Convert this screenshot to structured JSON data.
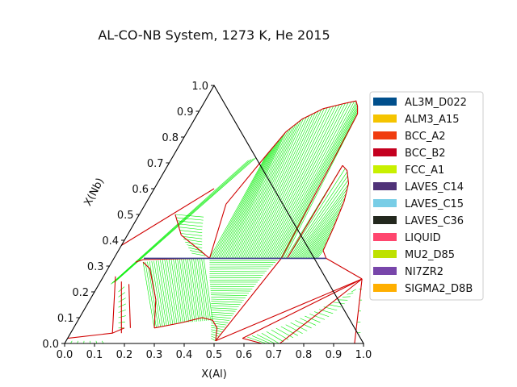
{
  "chart_data": {
    "type": "ternary-phase-diagram",
    "title": "AL-CO-NB System, 1273 K, He 2015",
    "xlabel": "X(Al)",
    "ylabel": "X(Nb)",
    "xlim": [
      0.0,
      1.0
    ],
    "ylim": [
      0.0,
      1.0
    ],
    "x_ticks": [
      "0.0",
      "0.1",
      "0.2",
      "0.3",
      "0.4",
      "0.5",
      "0.6",
      "0.7",
      "0.8",
      "0.9",
      "1.0"
    ],
    "y_ticks": [
      "0.0",
      "0.1",
      "0.2",
      "0.3",
      "0.4",
      "0.5",
      "0.6",
      "0.7",
      "0.8",
      "0.9",
      "1.0"
    ],
    "legend_position": "right",
    "legend": [
      {
        "name": "AL3M_D022",
        "color": "#004f8c"
      },
      {
        "name": "ALM3_A15",
        "color": "#f5c400"
      },
      {
        "name": "BCC_A2",
        "color": "#f03c0f"
      },
      {
        "name": "BCC_B2",
        "color": "#c4001f"
      },
      {
        "name": "FCC_A1",
        "color": "#c8f000"
      },
      {
        "name": "LAVES_C14",
        "color": "#4f3278"
      },
      {
        "name": "LAVES_C15",
        "color": "#78cde6"
      },
      {
        "name": "LAVES_C36",
        "color": "#23281e"
      },
      {
        "name": "LIQUID",
        "color": "#ff466e"
      },
      {
        "name": "MU2_D85",
        "color": "#bee100"
      },
      {
        "name": "NI7ZR2",
        "color": "#7846aa"
      },
      {
        "name": "SIGMA2_D8B",
        "color": "#ffaf00"
      }
    ],
    "colors": {
      "boundary": "#d00000",
      "tieline": "#00ee00",
      "frame": "#000000",
      "laves_line": "#3c3c8c"
    },
    "tie_regions": [
      {
        "a": [
          [
            0.31,
            0.73
          ],
          [
            0.33,
            0.82
          ],
          [
            0.36,
            0.87
          ],
          [
            0.41,
            0.91
          ],
          [
            0.47,
            0.93
          ],
          [
            0.505,
            0.94
          ],
          [
            0.52,
            0.92
          ],
          [
            0.535,
            0.89
          ]
        ],
        "b": [
          [
            0.32,
            0.33
          ],
          [
            0.37,
            0.33
          ],
          [
            0.42,
            0.33
          ],
          [
            0.47,
            0.33
          ],
          [
            0.52,
            0.33
          ],
          [
            0.55,
            0.33
          ],
          [
            0.56,
            0.33
          ],
          [
            0.57,
            0.33
          ]
        ],
        "n": 42
      },
      {
        "a": [
          [
            0.585,
            0.69
          ],
          [
            0.61,
            0.67
          ],
          [
            0.64,
            0.62
          ],
          [
            0.66,
            0.55
          ],
          [
            0.675,
            0.45
          ],
          [
            0.685,
            0.36
          ]
        ],
        "b": [
          [
            0.575,
            0.33
          ],
          [
            0.6,
            0.33
          ],
          [
            0.63,
            0.33
          ],
          [
            0.65,
            0.33
          ],
          [
            0.665,
            0.33
          ],
          [
            0.68,
            0.33
          ]
        ],
        "n": 20
      },
      {
        "a": [
          [
            0.105,
            0.315
          ],
          [
            0.2,
            0.33
          ],
          [
            0.3,
            0.33
          ]
        ],
        "b": [
          [
            0.27,
            0.06
          ],
          [
            0.35,
            0.08
          ],
          [
            0.45,
            0.09
          ]
        ],
        "n": 30
      },
      {
        "a": [
          [
            0.32,
            0.33
          ],
          [
            0.36,
            0.25
          ],
          [
            0.4,
            0.18
          ],
          [
            0.43,
            0.12
          ],
          [
            0.46,
            0.06
          ],
          [
            0.48,
            0.02
          ]
        ],
        "b": [
          [
            0.555,
            0.33
          ],
          [
            0.535,
            0.28
          ],
          [
            0.52,
            0.2
          ],
          [
            0.51,
            0.13
          ],
          [
            0.505,
            0.06
          ],
          [
            0.5,
            0.01
          ]
        ],
        "n": 38
      },
      {
        "a": [
          [
            0.585,
            0.02
          ],
          [
            0.64,
            0.04
          ],
          [
            0.7,
            0.07
          ],
          [
            0.77,
            0.12
          ],
          [
            0.83,
            0.17
          ],
          [
            0.86,
            0.2
          ]
        ],
        "b": [
          [
            0.66,
            0.0
          ],
          [
            0.72,
            0.0
          ],
          [
            0.78,
            0.04
          ],
          [
            0.83,
            0.1
          ],
          [
            0.86,
            0.15
          ],
          [
            0.87,
            0.21
          ]
        ],
        "n": 24
      },
      {
        "a": [
          [
            0.02,
            0.01
          ],
          [
            0.06,
            0.01
          ],
          [
            0.12,
            0.01
          ]
        ],
        "b": [
          [
            0.02,
            0.0
          ],
          [
            0.07,
            0.0
          ],
          [
            0.13,
            0.0
          ]
        ],
        "n": 6
      },
      {
        "a": [
          [
            0.08,
            0.2
          ],
          [
            0.1,
            0.16
          ],
          [
            0.13,
            0.1
          ],
          [
            0.15,
            0.06
          ]
        ],
        "b": [
          [
            0.09,
            0.22
          ],
          [
            0.12,
            0.17
          ],
          [
            0.15,
            0.11
          ],
          [
            0.17,
            0.06
          ]
        ],
        "n": 8
      },
      {
        "a": [
          [
            0.12,
            0.5
          ],
          [
            0.15,
            0.46
          ],
          [
            0.18,
            0.42
          ],
          [
            0.22,
            0.38
          ],
          [
            0.25,
            0.35
          ]
        ],
        "b": [
          [
            0.22,
            0.49
          ],
          [
            0.24,
            0.44
          ],
          [
            0.26,
            0.4
          ],
          [
            0.28,
            0.36
          ],
          [
            0.3,
            0.34
          ]
        ],
        "n": 14
      },
      {
        "a": [
          [
            0.26,
            0.71
          ],
          [
            0.28,
            0.72
          ]
        ],
        "b": [
          [
            0.04,
            0.23
          ],
          [
            0.05,
            0.24
          ]
        ],
        "n": 4
      },
      {
        "a": [
          [
            0.88,
            0.21
          ],
          [
            0.9,
            0.17
          ],
          [
            0.93,
            0.1
          ],
          [
            0.96,
            0.04
          ],
          [
            0.98,
            0.0
          ]
        ],
        "b": [
          [
            0.89,
            0.21
          ],
          [
            0.91,
            0.17
          ],
          [
            0.94,
            0.1
          ],
          [
            0.97,
            0.04
          ],
          [
            0.99,
            0.0
          ]
        ],
        "n": 6
      }
    ],
    "boundaries": [
      [
        [
          0.27,
          0.54
        ],
        [
          0.31,
          0.73
        ],
        [
          0.33,
          0.82
        ],
        [
          0.36,
          0.87
        ],
        [
          0.41,
          0.91
        ],
        [
          0.47,
          0.93
        ],
        [
          0.505,
          0.94
        ],
        [
          0.52,
          0.92
        ],
        [
          0.535,
          0.89
        ]
      ],
      [
        [
          0.27,
          0.54
        ],
        [
          0.32,
          0.33
        ]
      ],
      [
        [
          0.535,
          0.89
        ],
        [
          0.56,
          0.33
        ]
      ],
      [
        [
          0.585,
          0.69
        ],
        [
          0.58,
          0.33
        ]
      ],
      [
        [
          0.585,
          0.69
        ],
        [
          0.61,
          0.67
        ],
        [
          0.64,
          0.62
        ],
        [
          0.66,
          0.55
        ],
        [
          0.675,
          0.45
        ],
        [
          0.685,
          0.36
        ],
        [
          0.71,
          0.33
        ]
      ],
      [
        [
          0.71,
          0.33
        ],
        [
          0.87,
          0.25
        ]
      ],
      [
        [
          0.08,
          0.315
        ],
        [
          0.1,
          0.325
        ],
        [
          0.32,
          0.33
        ]
      ],
      [
        [
          0.105,
          0.315
        ],
        [
          0.14,
          0.29
        ],
        [
          0.22,
          0.17
        ],
        [
          0.27,
          0.06
        ]
      ],
      [
        [
          0.27,
          0.06
        ],
        [
          0.35,
          0.08
        ],
        [
          0.41,
          0.1
        ],
        [
          0.45,
          0.09
        ],
        [
          0.48,
          0.06
        ],
        [
          0.5,
          0.01
        ]
      ],
      [
        [
          0.5,
          0.01
        ],
        [
          0.56,
          0.33
        ]
      ],
      [
        [
          0.87,
          0.25
        ],
        [
          0.5,
          0.01
        ]
      ],
      [
        [
          0.87,
          0.25
        ],
        [
          0.585,
          0.02
        ]
      ],
      [
        [
          0.585,
          0.02
        ],
        [
          0.66,
          0.0
        ]
      ],
      [
        [
          0.87,
          0.25
        ],
        [
          0.72,
          0.0
        ]
      ],
      [
        [
          0.87,
          0.25
        ],
        [
          0.97,
          0.0
        ]
      ],
      [
        [
          0.04,
          0.26
        ],
        [
          0.14,
          0.04
        ],
        [
          0.17,
          0.06
        ]
      ],
      [
        [
          0.07,
          0.24
        ],
        [
          0.17,
          0.04
        ]
      ],
      [
        [
          0.1,
          0.23
        ],
        [
          0.19,
          0.06
        ]
      ],
      [
        [
          0.0,
          0.02
        ],
        [
          0.14,
          0.04
        ]
      ],
      [
        [
          0.0,
          0.0
        ],
        [
          0.13,
          0.0
        ]
      ],
      [
        [
          0.2,
          0.6
        ],
        [
          0.0,
          0.38
        ]
      ],
      [
        [
          0.32,
          0.33
        ],
        [
          0.18,
          0.42
        ],
        [
          0.12,
          0.5
        ]
      ]
    ],
    "laves_line": [
      [
        0.1,
        0.33
      ],
      [
        0.71,
        0.33
      ]
    ]
  }
}
